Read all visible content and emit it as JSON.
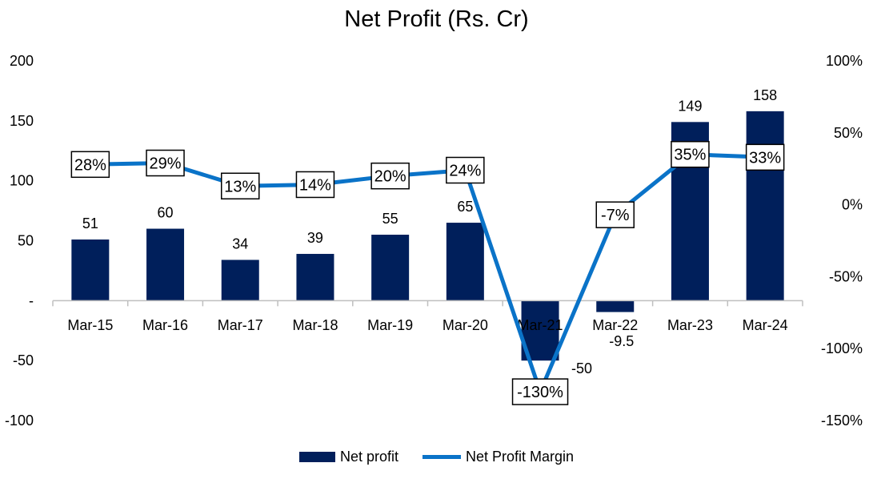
{
  "chart_data": {
    "type": "bar",
    "title": "Net Profit (Rs. Cr)",
    "categories": [
      "Mar-15",
      "Mar-16",
      "Mar-17",
      "Mar-18",
      "Mar-19",
      "Mar-20",
      "Mar-21",
      "Mar-22",
      "Mar-23",
      "Mar-24"
    ],
    "series": [
      {
        "name": "Net profit",
        "type": "bar",
        "axis": "left",
        "color": "#001f5b",
        "values": [
          51,
          60,
          34,
          39,
          55,
          65,
          -50,
          -9.5,
          149,
          158
        ],
        "labels": [
          "51",
          "60",
          "34",
          "39",
          "55",
          "65",
          "-50",
          "-9.5",
          "149",
          "158"
        ]
      },
      {
        "name": "Net Profit Margin",
        "type": "line",
        "axis": "right",
        "color": "#0a73c8",
        "values": [
          28,
          29,
          13,
          14,
          20,
          24,
          -130,
          -7,
          35,
          33
        ],
        "labels": [
          "28%",
          "29%",
          "13%",
          "14%",
          "20%",
          "24%",
          "-130%",
          "-7%",
          "35%",
          "33%"
        ]
      }
    ],
    "left_axis": {
      "ylim": [
        -100,
        200
      ],
      "ticks": [
        200,
        150,
        100,
        50,
        0,
        -50,
        -100
      ],
      "tick_labels": [
        "200",
        "150",
        "100",
        "50",
        "-",
        "-50",
        "-100"
      ]
    },
    "right_axis": {
      "ylim": [
        -150,
        100
      ],
      "ticks": [
        100,
        50,
        0,
        -50,
        -100,
        -150
      ],
      "tick_labels": [
        "100%",
        "50%",
        "0%",
        "-50%",
        "-100%",
        "-150%"
      ]
    },
    "grid": false,
    "legend_position": "bottom"
  }
}
